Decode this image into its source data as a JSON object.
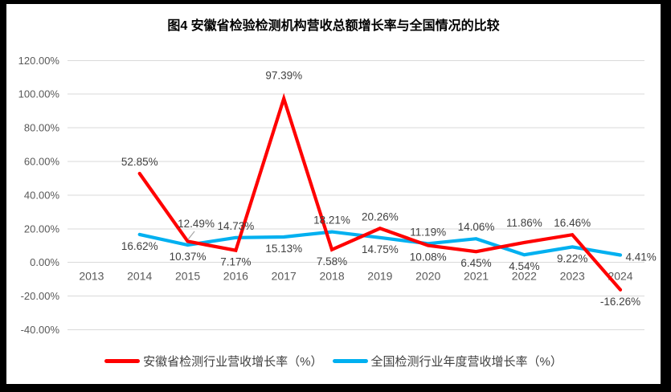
{
  "chart_data": {
    "type": "line",
    "title": "图4 安徽省检验检测机构营收总额增长率与全国情况的比较",
    "categories": [
      "2013",
      "2014",
      "2015",
      "2016",
      "2017",
      "2018",
      "2019",
      "2020",
      "2021",
      "2022",
      "2023",
      "2024"
    ],
    "series": [
      {
        "name": "安徽省检测行业营收增长率（%）",
        "color": "#FF0000",
        "values": [
          null,
          52.85,
          12.49,
          7.17,
          97.39,
          7.58,
          20.26,
          10.08,
          6.45,
          11.86,
          16.46,
          -16.26
        ],
        "data_labels": [
          null,
          "52.85%",
          "12.49%",
          "7.17%",
          "97.39%",
          "7.58%",
          "20.26%",
          "10.08%",
          "6.45%",
          "11.86%",
          "16.46%",
          "-16.26%"
        ],
        "label_positions": [
          null,
          "above",
          "above-leader",
          "below",
          "above",
          "below",
          "above",
          "below",
          "below",
          "above",
          "above",
          "below"
        ]
      },
      {
        "name": "全国检测行业年度营收增长率（%）",
        "color": "#00B0F0",
        "values": [
          null,
          16.62,
          10.37,
          14.73,
          15.13,
          18.21,
          14.75,
          11.19,
          14.06,
          4.54,
          9.22,
          4.41
        ],
        "data_labels": [
          null,
          "16.62%",
          "10.37%",
          "14.73%",
          "15.13%",
          "18.21%",
          "14.75%",
          "11.19%",
          "14.06%",
          "4.54%",
          "9.22%",
          "4.41%"
        ],
        "label_positions": [
          null,
          "below",
          "below",
          "above",
          "below",
          "above",
          "below",
          "above",
          "above",
          "below",
          "below",
          "right"
        ]
      }
    ],
    "y_axis": {
      "min": -40,
      "max": 120,
      "step": 20,
      "tick_labels": [
        "120.00%",
        "100.00%",
        "80.00%",
        "60.00%",
        "40.00%",
        "20.00%",
        "0.00%",
        "-20.00%",
        "-40.00%"
      ]
    },
    "x_axis": {
      "tick_labels": [
        "2013",
        "2014",
        "2015",
        "2016",
        "2017",
        "2018",
        "2019",
        "2020",
        "2021",
        "2022",
        "2023",
        "2024"
      ]
    },
    "grid": true,
    "legend_position": "bottom",
    "colors": {
      "gridline": "#D9D9D9",
      "axis_text": "#595959",
      "data_label_text": "#404040",
      "leader_line": "#A6A6A6",
      "frame": "#000000"
    }
  }
}
